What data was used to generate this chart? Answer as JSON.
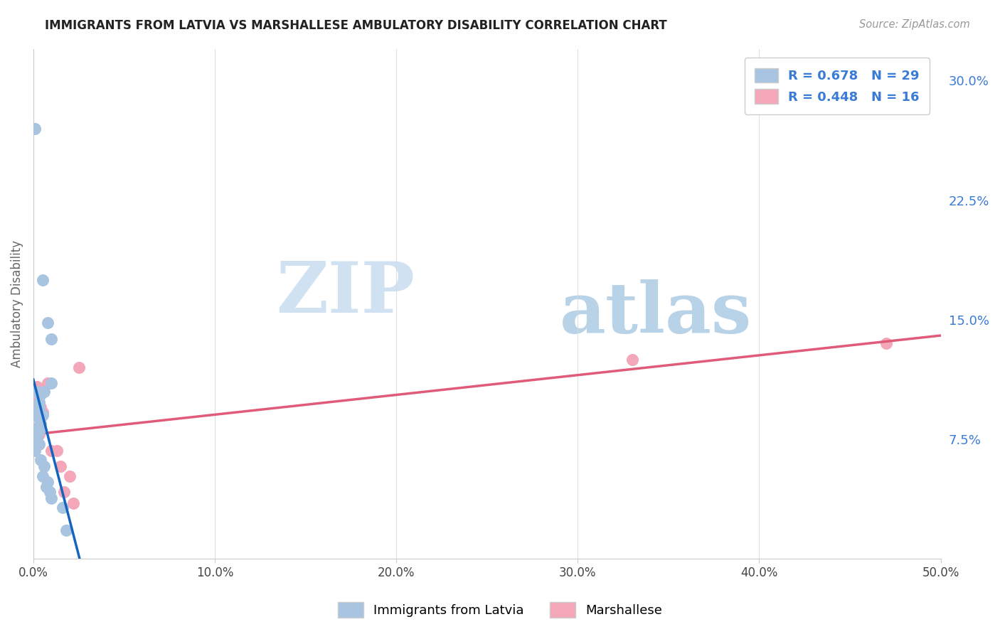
{
  "title": "IMMIGRANTS FROM LATVIA VS MARSHALLESE AMBULATORY DISABILITY CORRELATION CHART",
  "source": "Source: ZipAtlas.com",
  "ylabel": "Ambulatory Disability",
  "xlim": [
    0.0,
    0.5
  ],
  "ylim": [
    0.0,
    0.32
  ],
  "xtick_vals": [
    0.0,
    0.1,
    0.2,
    0.3,
    0.4,
    0.5
  ],
  "ytick_vals": [
    0.075,
    0.15,
    0.225,
    0.3
  ],
  "ytick_labels": [
    "7.5%",
    "15.0%",
    "22.5%",
    "30.0%"
  ],
  "legend_r1": "R = 0.678",
  "legend_n1": "N = 29",
  "legend_r2": "R = 0.448",
  "legend_n2": "N = 16",
  "blue_color": "#a8c4e0",
  "pink_color": "#f4a7b9",
  "blue_line_color": "#1464c0",
  "pink_line_color": "#e05a7a",
  "dash_color": "#b0b8c8",
  "blue_scatter": [
    [
      0.001,
      0.27
    ],
    [
      0.005,
      0.175
    ],
    [
      0.008,
      0.148
    ],
    [
      0.01,
      0.138
    ],
    [
      0.01,
      0.11
    ],
    [
      0.006,
      0.105
    ],
    [
      0.002,
      0.105
    ],
    [
      0.004,
      0.103
    ],
    [
      0.003,
      0.098
    ],
    [
      0.003,
      0.095
    ],
    [
      0.002,
      0.09
    ],
    [
      0.005,
      0.09
    ],
    [
      0.003,
      0.088
    ],
    [
      0.004,
      0.085
    ],
    [
      0.002,
      0.082
    ],
    [
      0.003,
      0.08
    ],
    [
      0.001,
      0.078
    ],
    [
      0.002,
      0.075
    ],
    [
      0.003,
      0.072
    ],
    [
      0.001,
      0.068
    ],
    [
      0.004,
      0.062
    ],
    [
      0.006,
      0.058
    ],
    [
      0.005,
      0.052
    ],
    [
      0.008,
      0.048
    ],
    [
      0.007,
      0.045
    ],
    [
      0.009,
      0.042
    ],
    [
      0.01,
      0.038
    ],
    [
      0.016,
      0.032
    ],
    [
      0.018,
      0.018
    ]
  ],
  "pink_scatter": [
    [
      0.002,
      0.108
    ],
    [
      0.002,
      0.098
    ],
    [
      0.004,
      0.095
    ],
    [
      0.005,
      0.092
    ],
    [
      0.002,
      0.082
    ],
    [
      0.003,
      0.078
    ],
    [
      0.008,
      0.11
    ],
    [
      0.01,
      0.068
    ],
    [
      0.013,
      0.068
    ],
    [
      0.015,
      0.058
    ],
    [
      0.017,
      0.042
    ],
    [
      0.02,
      0.052
    ],
    [
      0.022,
      0.035
    ],
    [
      0.025,
      0.12
    ],
    [
      0.33,
      0.125
    ],
    [
      0.47,
      0.135
    ]
  ],
  "watermark_zip": "ZIP",
  "watermark_atlas": "atlas",
  "background_color": "#ffffff",
  "grid_color": "#d8d8d8",
  "blue_solid_xlim": [
    0.0,
    0.155
  ],
  "blue_dash_xlim": [
    0.155,
    0.42
  ],
  "pink_xlim": [
    0.0,
    0.5
  ]
}
